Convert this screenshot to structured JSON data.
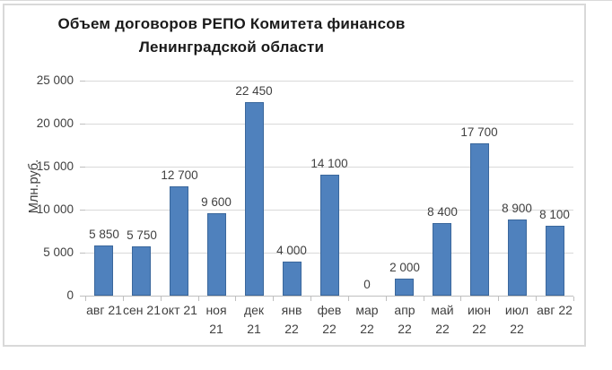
{
  "page": {
    "background": "#ffffff",
    "edge_line_color": "#dadada"
  },
  "chart": {
    "title_lines": [
      "Объем  договоров РЕПО Комитета финансов",
      "Ленинградской области"
    ]
  },
  "chart_data": {
    "type": "bar",
    "title": "Объем  договоров РЕПО Комитета финансов Ленинградской области",
    "ylabel": "Млн.руб.",
    "xlabel": "",
    "ylim": [
      0,
      25000
    ],
    "ytick_interval": 5000,
    "ytick_labels": [
      "0",
      "5 000",
      "10 000",
      "15 000",
      "20 000",
      "25 000"
    ],
    "grid": true,
    "legend": false,
    "categories": [
      "авг 21",
      "сен 21",
      "окт 21",
      "ноя 21",
      "дек 21",
      "янв 22",
      "фев 22",
      "мар 22",
      "апр 22",
      "май 22",
      "июн 22",
      "июл 22",
      "авг 22"
    ],
    "x_tick_label_lines": [
      [
        "авг 21"
      ],
      [
        "сен 21"
      ],
      [
        "окт 21"
      ],
      [
        "ноя",
        "21"
      ],
      [
        "дек",
        "21"
      ],
      [
        "янв",
        "22"
      ],
      [
        "фев",
        "22"
      ],
      [
        "мар",
        "22"
      ],
      [
        "апр",
        "22"
      ],
      [
        "май",
        "22"
      ],
      [
        "июн",
        "22"
      ],
      [
        "июл",
        "22"
      ],
      [
        "авг 22"
      ]
    ],
    "values": [
      5850,
      5750,
      12700,
      9600,
      22450,
      4000,
      14100,
      0,
      2000,
      8400,
      17700,
      8900,
      8100
    ],
    "value_labels": [
      "5 850",
      "5 750",
      "12 700",
      "9 600",
      "22 450",
      "4 000",
      "14 100",
      "0",
      "2 000",
      "8 400",
      "17 700",
      "8 900",
      "8 100"
    ],
    "colors": {
      "bar_fill": "#4f81bd",
      "bar_border": "#3a679c",
      "gridline": "#d9d9d9",
      "axis_line": "#bfbfbf",
      "text": "#404040",
      "title_text": "#1a1a1a",
      "frame_border": "#d9d9d9"
    }
  }
}
